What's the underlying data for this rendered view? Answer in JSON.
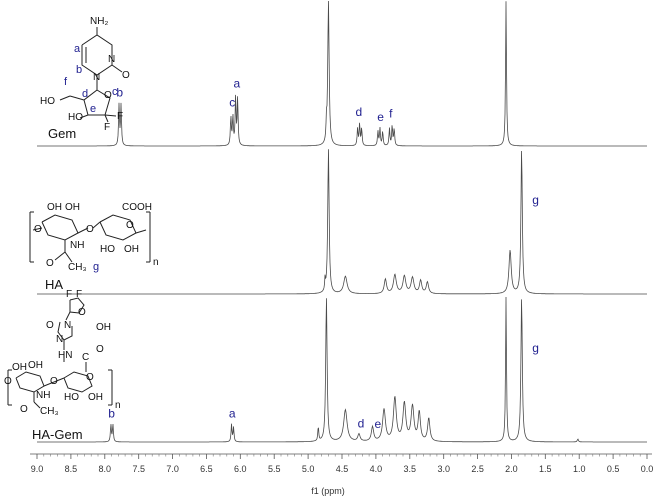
{
  "chart_data": {
    "type": "line",
    "xlabel": "f1 (ppm)",
    "xlim": [
      9.0,
      0.0
    ],
    "x_ticks": [
      "9.0",
      "8.5",
      "8.0",
      "7.5",
      "7.0",
      "6.5",
      "6.0",
      "5.5",
      "5.0",
      "4.5",
      "4.0",
      "3.5",
      "3.0",
      "2.5",
      "2.0",
      "1.5",
      "1.0",
      "0.5",
      "0.0"
    ],
    "grid": false,
    "spectra": [
      {
        "name": "Gem",
        "peak_labels": [
          {
            "label": "b",
            "ppm": 7.78
          },
          {
            "label": "c",
            "ppm": 6.12
          },
          {
            "label": "a",
            "ppm": 6.05
          },
          {
            "label": "d",
            "ppm": 4.25
          },
          {
            "label": "e",
            "ppm": 3.93
          },
          {
            "label": "f",
            "ppm": 3.78
          }
        ],
        "peaks": [
          {
            "ppm": 7.79,
            "h": 0.28,
            "w": 0.008
          },
          {
            "ppm": 7.76,
            "h": 0.28,
            "w": 0.008
          },
          {
            "ppm": 6.14,
            "h": 0.2,
            "w": 0.008
          },
          {
            "ppm": 6.11,
            "h": 0.2,
            "w": 0.008
          },
          {
            "ppm": 6.07,
            "h": 0.33,
            "w": 0.008
          },
          {
            "ppm": 6.04,
            "h": 0.33,
            "w": 0.008
          },
          {
            "ppm": 4.73,
            "h": 0.12,
            "w": 0.006
          },
          {
            "ppm": 4.7,
            "h": 1.0,
            "w": 0.012
          },
          {
            "ppm": 4.27,
            "h": 0.12,
            "w": 0.008
          },
          {
            "ppm": 4.24,
            "h": 0.15,
            "w": 0.008
          },
          {
            "ppm": 4.21,
            "h": 0.12,
            "w": 0.008
          },
          {
            "ppm": 3.97,
            "h": 0.1,
            "w": 0.008
          },
          {
            "ppm": 3.94,
            "h": 0.12,
            "w": 0.008
          },
          {
            "ppm": 3.9,
            "h": 0.1,
            "w": 0.008
          },
          {
            "ppm": 3.8,
            "h": 0.12,
            "w": 0.008
          },
          {
            "ppm": 3.76,
            "h": 0.14,
            "w": 0.008
          },
          {
            "ppm": 3.73,
            "h": 0.12,
            "w": 0.008
          },
          {
            "ppm": 2.08,
            "h": 1.0,
            "w": 0.008
          }
        ]
      },
      {
        "name": "HA",
        "peak_labels": [
          {
            "label": "g",
            "ppm": 1.85
          }
        ],
        "peaks": [
          {
            "ppm": 4.7,
            "h": 1.0,
            "w": 0.012
          },
          {
            "ppm": 4.75,
            "h": 0.08,
            "w": 0.006
          },
          {
            "ppm": 4.45,
            "h": 0.12,
            "w": 0.03
          },
          {
            "ppm": 3.86,
            "h": 0.1,
            "w": 0.02
          },
          {
            "ppm": 3.72,
            "h": 0.13,
            "w": 0.025
          },
          {
            "ppm": 3.58,
            "h": 0.12,
            "w": 0.025
          },
          {
            "ppm": 3.46,
            "h": 0.11,
            "w": 0.025
          },
          {
            "ppm": 3.34,
            "h": 0.09,
            "w": 0.02
          },
          {
            "ppm": 3.24,
            "h": 0.08,
            "w": 0.02
          },
          {
            "ppm": 2.02,
            "h": 0.3,
            "w": 0.02
          },
          {
            "ppm": 1.85,
            "h": 1.0,
            "w": 0.012
          }
        ]
      },
      {
        "name": "HA-Gem",
        "peak_labels": [
          {
            "label": "b",
            "ppm": 7.9
          },
          {
            "label": "a",
            "ppm": 6.12
          },
          {
            "label": "d",
            "ppm": 4.22
          },
          {
            "label": "e",
            "ppm": 3.97
          },
          {
            "label": "g",
            "ppm": 1.85
          }
        ],
        "peaks": [
          {
            "ppm": 7.91,
            "h": 0.12,
            "w": 0.008
          },
          {
            "ppm": 7.88,
            "h": 0.12,
            "w": 0.008
          },
          {
            "ppm": 6.13,
            "h": 0.12,
            "w": 0.008
          },
          {
            "ppm": 6.1,
            "h": 0.1,
            "w": 0.008
          },
          {
            "ppm": 4.85,
            "h": 0.1,
            "w": 0.008
          },
          {
            "ppm": 4.73,
            "h": 1.0,
            "w": 0.012
          },
          {
            "ppm": 4.45,
            "h": 0.22,
            "w": 0.03
          },
          {
            "ppm": 4.25,
            "h": 0.05,
            "w": 0.02
          },
          {
            "ppm": 4.05,
            "h": 0.1,
            "w": 0.02
          },
          {
            "ppm": 3.88,
            "h": 0.22,
            "w": 0.025
          },
          {
            "ppm": 3.72,
            "h": 0.3,
            "w": 0.025
          },
          {
            "ppm": 3.58,
            "h": 0.26,
            "w": 0.025
          },
          {
            "ppm": 3.46,
            "h": 0.24,
            "w": 0.025
          },
          {
            "ppm": 3.36,
            "h": 0.2,
            "w": 0.02
          },
          {
            "ppm": 3.22,
            "h": 0.16,
            "w": 0.02
          },
          {
            "ppm": 2.08,
            "h": 1.0,
            "w": 0.008
          },
          {
            "ppm": 1.85,
            "h": 1.0,
            "w": 0.012
          },
          {
            "ppm": 1.02,
            "h": 0.02,
            "w": 0.01
          }
        ]
      }
    ]
  },
  "structures": {
    "gem": {
      "amine": "NH₂",
      "ring_atoms": [
        "N",
        "N"
      ],
      "carbonyl": "O",
      "ring_o": "O",
      "hydroxyl_1": "HO",
      "hydroxyl_2": "HO",
      "fluorines": [
        "F",
        "F"
      ],
      "labels": [
        "a",
        "b",
        "c",
        "d",
        "e",
        "f"
      ]
    },
    "ha": {
      "atoms": [
        "OH",
        "OH",
        "COOH",
        "O",
        "O",
        "O",
        "HO",
        "OH",
        "NH",
        "O",
        "CH₃"
      ],
      "repeat": "n",
      "label": "g"
    },
    "ha_gem": {
      "atoms": [
        "F",
        "F",
        "O",
        "OH",
        "O",
        "N",
        "N",
        "HN",
        "C",
        "O",
        "OH",
        "OH",
        "O",
        "O",
        "O",
        "HO",
        "OH",
        "NH",
        "O",
        "CH₃"
      ],
      "repeat": "n"
    }
  }
}
